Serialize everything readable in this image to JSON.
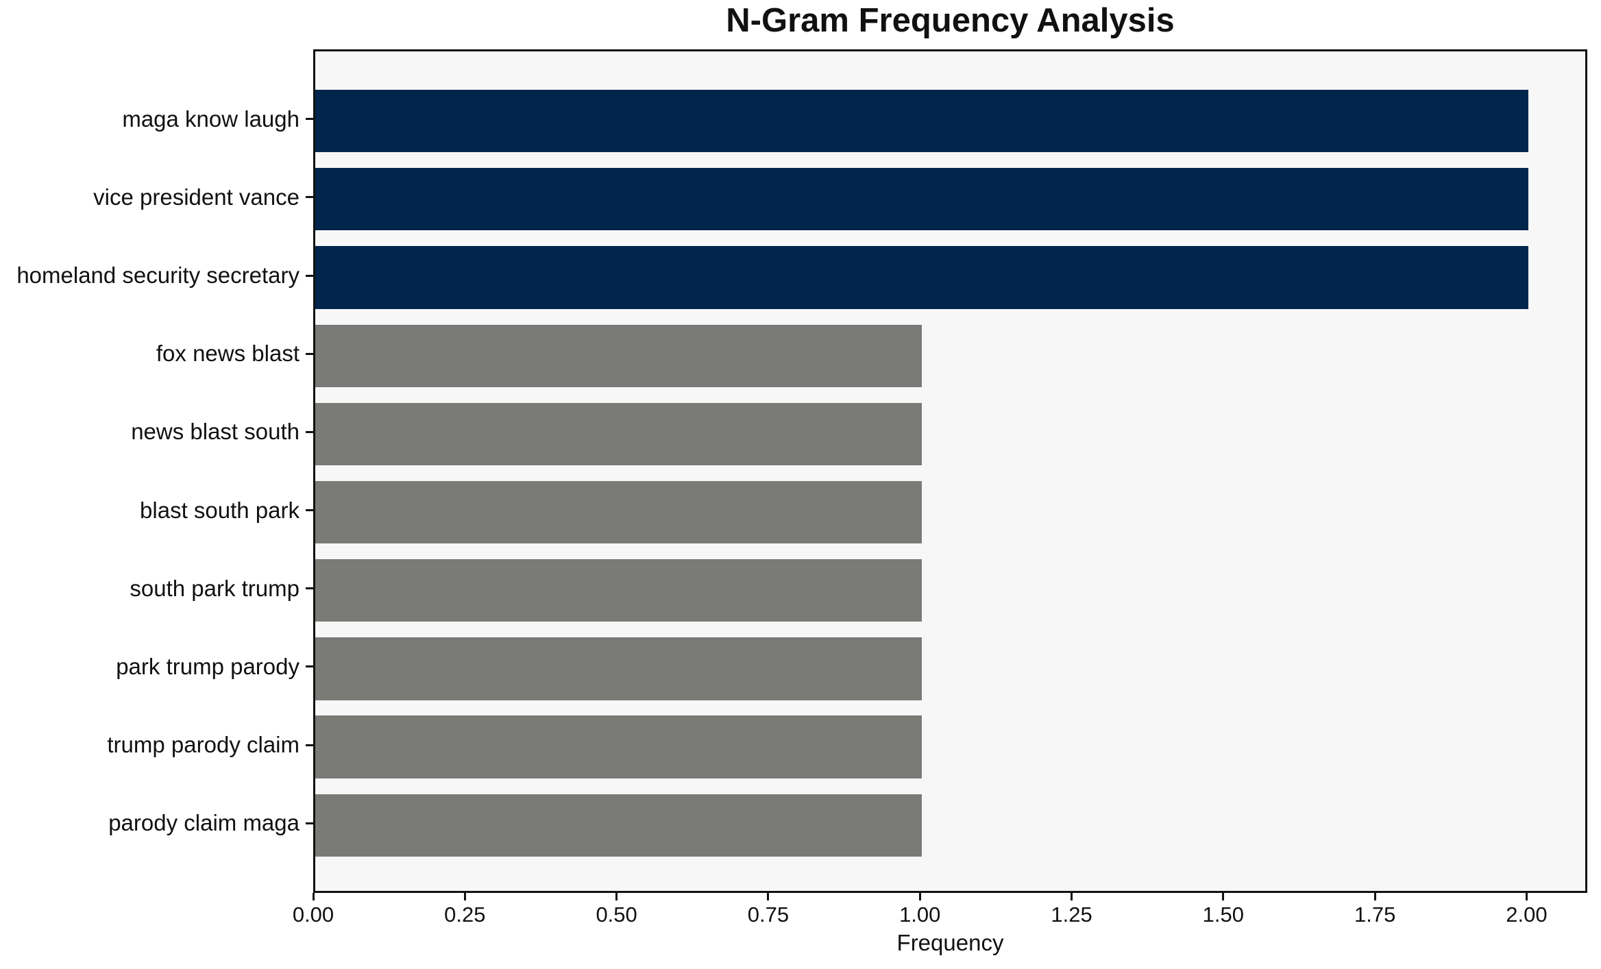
{
  "chart_data": {
    "type": "bar",
    "orientation": "horizontal",
    "title": "N-Gram Frequency Analysis",
    "xlabel": "Frequency",
    "ylabel": "",
    "categories": [
      "maga know laugh",
      "vice president vance",
      "homeland security secretary",
      "fox news blast",
      "news blast south",
      "blast south park",
      "south park trump",
      "park trump parody",
      "trump parody claim",
      "parody claim maga"
    ],
    "values": [
      2,
      2,
      2,
      1,
      1,
      1,
      1,
      1,
      1,
      1
    ],
    "bar_colors": [
      "#02254d",
      "#02254d",
      "#02254d",
      "#7a7a76",
      "#7a7a76",
      "#7a7a76",
      "#7a7a76",
      "#7a7a76",
      "#7a7a76",
      "#7a7a76"
    ],
    "xlim": [
      0,
      2.1
    ],
    "ylim": [
      -0.89,
      9.89
    ],
    "bar_thickness_units": 0.8,
    "xticks": {
      "labels": [
        "0.00",
        "0.25",
        "0.50",
        "0.75",
        "1.00",
        "1.25",
        "1.50",
        "1.75",
        "2.00"
      ],
      "values": [
        0,
        0.25,
        0.5,
        0.75,
        1.0,
        1.25,
        1.5,
        1.75,
        2.0
      ]
    },
    "grid": false,
    "legend": "none",
    "colors": {
      "highlight": "#02254d",
      "default_bar": "#7a7a76",
      "plot_background": "#f7f7f7",
      "figure_background": "#ffffff",
      "spine": "#111111",
      "text": "#111111"
    }
  }
}
